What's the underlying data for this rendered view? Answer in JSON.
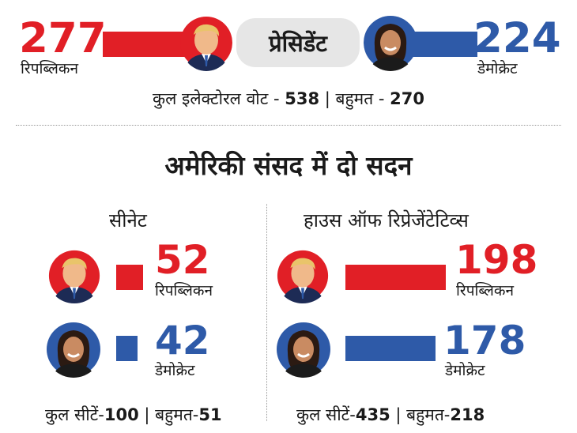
{
  "colors": {
    "republican": "#e11f26",
    "democrat": "#2e5aa8",
    "pill": "#e6e6e6",
    "text": "#1a1a1a"
  },
  "president": {
    "title": "प्रेसिडेंट",
    "republican": {
      "value": "277",
      "label": "रिपब्लिकन",
      "avatar": "trump-portrait"
    },
    "democrat": {
      "value": "224",
      "label": "डेमोक्रेट",
      "avatar": "harris-portrait"
    },
    "total_label": "कुल इलेक्टोरल वोट -",
    "total_value": "538",
    "separator": "|",
    "majority_label": "बहुमत -",
    "majority_value": "270"
  },
  "heading": "अमेरिकी संसद में दो सदन",
  "senate": {
    "title": "सीनेट",
    "total_label": "कुल सीटें-",
    "total_value": "100",
    "separator": "|",
    "majority_label": "बहुमत-",
    "majority_value": "51"
  },
  "house": {
    "title": "हाउस ऑफ रिप्रेजेंटेटिव्स",
    "total_label": "कुल सीटें-",
    "total_value": "435",
    "separator": "|",
    "majority_label": "बहुमत-",
    "majority_value": "218"
  },
  "chart_data": [
    {
      "type": "bar",
      "title": "प्रेसिडेंट",
      "categories": [
        "रिपब्लिकन",
        "डेमोक्रेट"
      ],
      "values": [
        277,
        224
      ],
      "total": 538,
      "majority": 270
    },
    {
      "type": "bar",
      "title": "सीनेट",
      "categories": [
        "रिपब्लिकन",
        "डेमोक्रेट"
      ],
      "values": [
        52,
        42
      ],
      "total": 100,
      "majority": 51
    },
    {
      "type": "bar",
      "title": "हाउस ऑफ रिप्रेजेंटेटिव्स",
      "categories": [
        "रिपब्लिकन",
        "डेमोक्रेट"
      ],
      "values": [
        198,
        178
      ],
      "total": 435,
      "majority": 218
    }
  ]
}
